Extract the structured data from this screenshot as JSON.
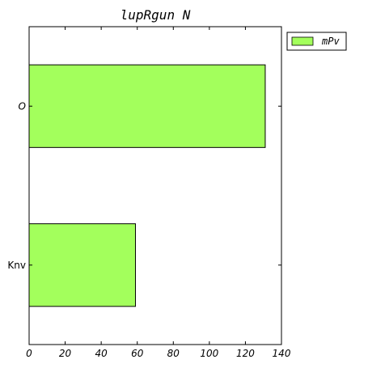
{
  "chart_data": {
    "type": "bar",
    "orientation": "horizontal",
    "title": "lupRgun N",
    "categories": [
      "O",
      "Knv"
    ],
    "series": [
      {
        "name": "mPv",
        "values": [
          131,
          59
        ],
        "color": "#a3ff5c"
      }
    ],
    "xlim": [
      0,
      140
    ],
    "xticks": [
      0,
      20,
      40,
      60,
      80,
      100,
      120,
      140
    ],
    "grid": false,
    "legend": "outside-top-right"
  }
}
